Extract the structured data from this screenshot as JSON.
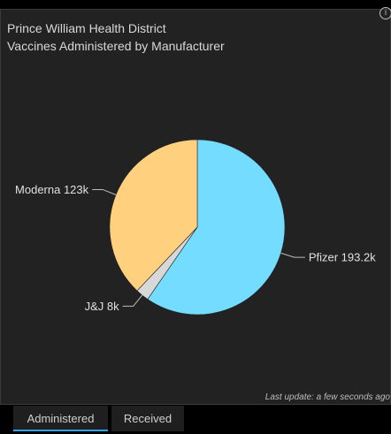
{
  "header": {
    "title_line1": "Prince William Health District",
    "title_line2": "Vaccines Administered by Manufacturer"
  },
  "footer": {
    "last_update": "Last update: a few seconds ago"
  },
  "tabs": [
    {
      "label": "Administered",
      "active": true
    },
    {
      "label": "Received",
      "active": false
    }
  ],
  "icons": {
    "info": "info-icon"
  },
  "colors": {
    "panel_background": "#222222",
    "tab_accent": "#35a6ff"
  },
  "chart_data": {
    "type": "pie",
    "title": "",
    "slices": [
      {
        "name": "Pfizer",
        "value": 193.2,
        "label": "Pfizer 193.2k",
        "color": "#73dcff"
      },
      {
        "name": "J&J",
        "value": 8,
        "label": "J&J 8k",
        "color": "#d8d8d8"
      },
      {
        "name": "Moderna",
        "value": 123,
        "label": "Moderna 123k",
        "color": "#ffd17f"
      }
    ],
    "unit": "k",
    "start_angle": "12 o'clock",
    "direction": "clockwise"
  }
}
